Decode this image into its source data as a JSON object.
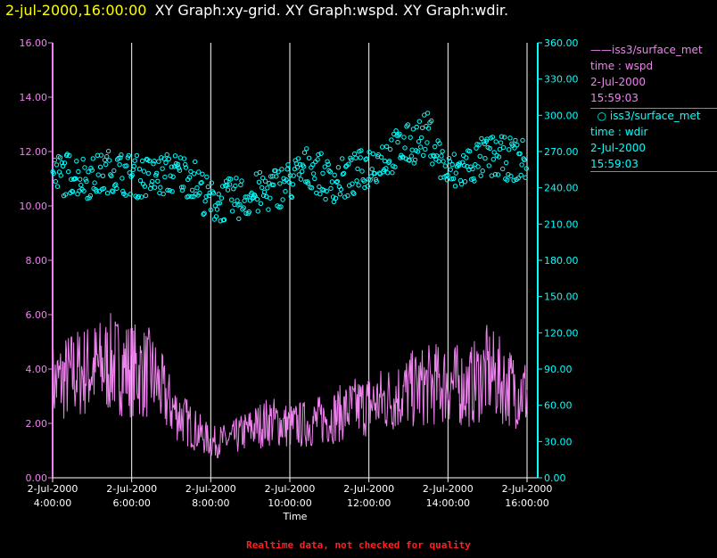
{
  "header": {
    "datetime": "2-jul-2000,16:00:00",
    "graphs": "XY Graph:xy-grid.  XY Graph:wspd.  XY Graph:wdir."
  },
  "legend": [
    {
      "marker": "line",
      "name": "iss3/surface_met",
      "field": "time : wspd",
      "date": "2-Jul-2000",
      "time": "15:59:03",
      "color": "#ee82ee"
    },
    {
      "marker": "circle",
      "name": "iss3/surface_met",
      "field": "time : wdir",
      "date": "2-Jul-2000",
      "time": "15:59:03",
      "color": "#00ffff"
    }
  ],
  "footer": "Realtime data, not checked for quality",
  "colors": {
    "background": "#000000",
    "wspd": "#ee82ee",
    "wdir": "#00ffff",
    "grid": "#ffffff",
    "title_date": "#ffff00",
    "footer": "#ff2020"
  },
  "chart_data": {
    "type": "line",
    "xlabel": "Time",
    "x_range_hours": [
      4.0,
      16.0
    ],
    "x_ticks": [
      {
        "hour": 4,
        "date": "2-Jul-2000",
        "time": "4:00:00"
      },
      {
        "hour": 6,
        "date": "2-Jul-2000",
        "time": "6:00:00"
      },
      {
        "hour": 8,
        "date": "2-Jul-2000",
        "time": "8:00:00"
      },
      {
        "hour": 10,
        "date": "2-Jul-2000",
        "time": "10:00:00"
      },
      {
        "hour": 12,
        "date": "2-Jul-2000",
        "time": "12:00:00"
      },
      {
        "hour": 14,
        "date": "2-Jul-2000",
        "time": "14:00:00"
      },
      {
        "hour": 16,
        "date": "2-Jul-2000",
        "time": "16:00:00"
      }
    ],
    "y_left": {
      "ylim": [
        0,
        16
      ],
      "ticks": [
        "0.00",
        "2.00",
        "4.00",
        "6.00",
        "8.00",
        "10.00",
        "12.00",
        "14.00",
        "16.00"
      ],
      "color": "#ee82ee"
    },
    "y_right": {
      "ylim": [
        0,
        360
      ],
      "ticks": [
        "0.00",
        "30.00",
        "60.00",
        "90.00",
        "120.00",
        "150.00",
        "180.00",
        "210.00",
        "240.00",
        "270.00",
        "300.00",
        "330.00",
        "360.00"
      ],
      "color": "#00ffff"
    },
    "vertical_grid": true,
    "series": [
      {
        "name": "time : wspd",
        "axis": "left",
        "style": "line",
        "x_hours": [
          4.0,
          4.5,
          5.0,
          5.5,
          6.0,
          6.5,
          7.0,
          7.5,
          8.0,
          8.5,
          9.0,
          9.5,
          10.0,
          10.5,
          11.0,
          11.5,
          12.0,
          12.5,
          13.0,
          13.5,
          14.0,
          14.5,
          15.0,
          15.5,
          16.0
        ],
        "values": [
          3.4,
          3.8,
          4.0,
          4.2,
          4.0,
          3.8,
          2.6,
          1.9,
          1.3,
          1.4,
          1.8,
          2.1,
          1.9,
          2.0,
          2.2,
          2.5,
          2.7,
          2.9,
          3.2,
          3.4,
          3.5,
          3.3,
          3.9,
          3.4,
          3.1
        ]
      },
      {
        "name": "time : wdir",
        "axis": "right",
        "style": "scatter",
        "x_hours": [
          4.0,
          4.5,
          5.0,
          5.5,
          6.0,
          6.5,
          7.0,
          7.5,
          8.0,
          8.5,
          9.0,
          9.5,
          10.0,
          10.5,
          11.0,
          11.5,
          12.0,
          12.5,
          13.0,
          13.5,
          14.0,
          14.5,
          15.0,
          15.5,
          16.0
        ],
        "values": [
          250,
          252,
          248,
          255,
          250,
          248,
          252,
          250,
          228,
          230,
          233,
          238,
          245,
          258,
          245,
          248,
          258,
          268,
          275,
          285,
          250,
          258,
          266,
          264,
          262
        ]
      }
    ]
  }
}
